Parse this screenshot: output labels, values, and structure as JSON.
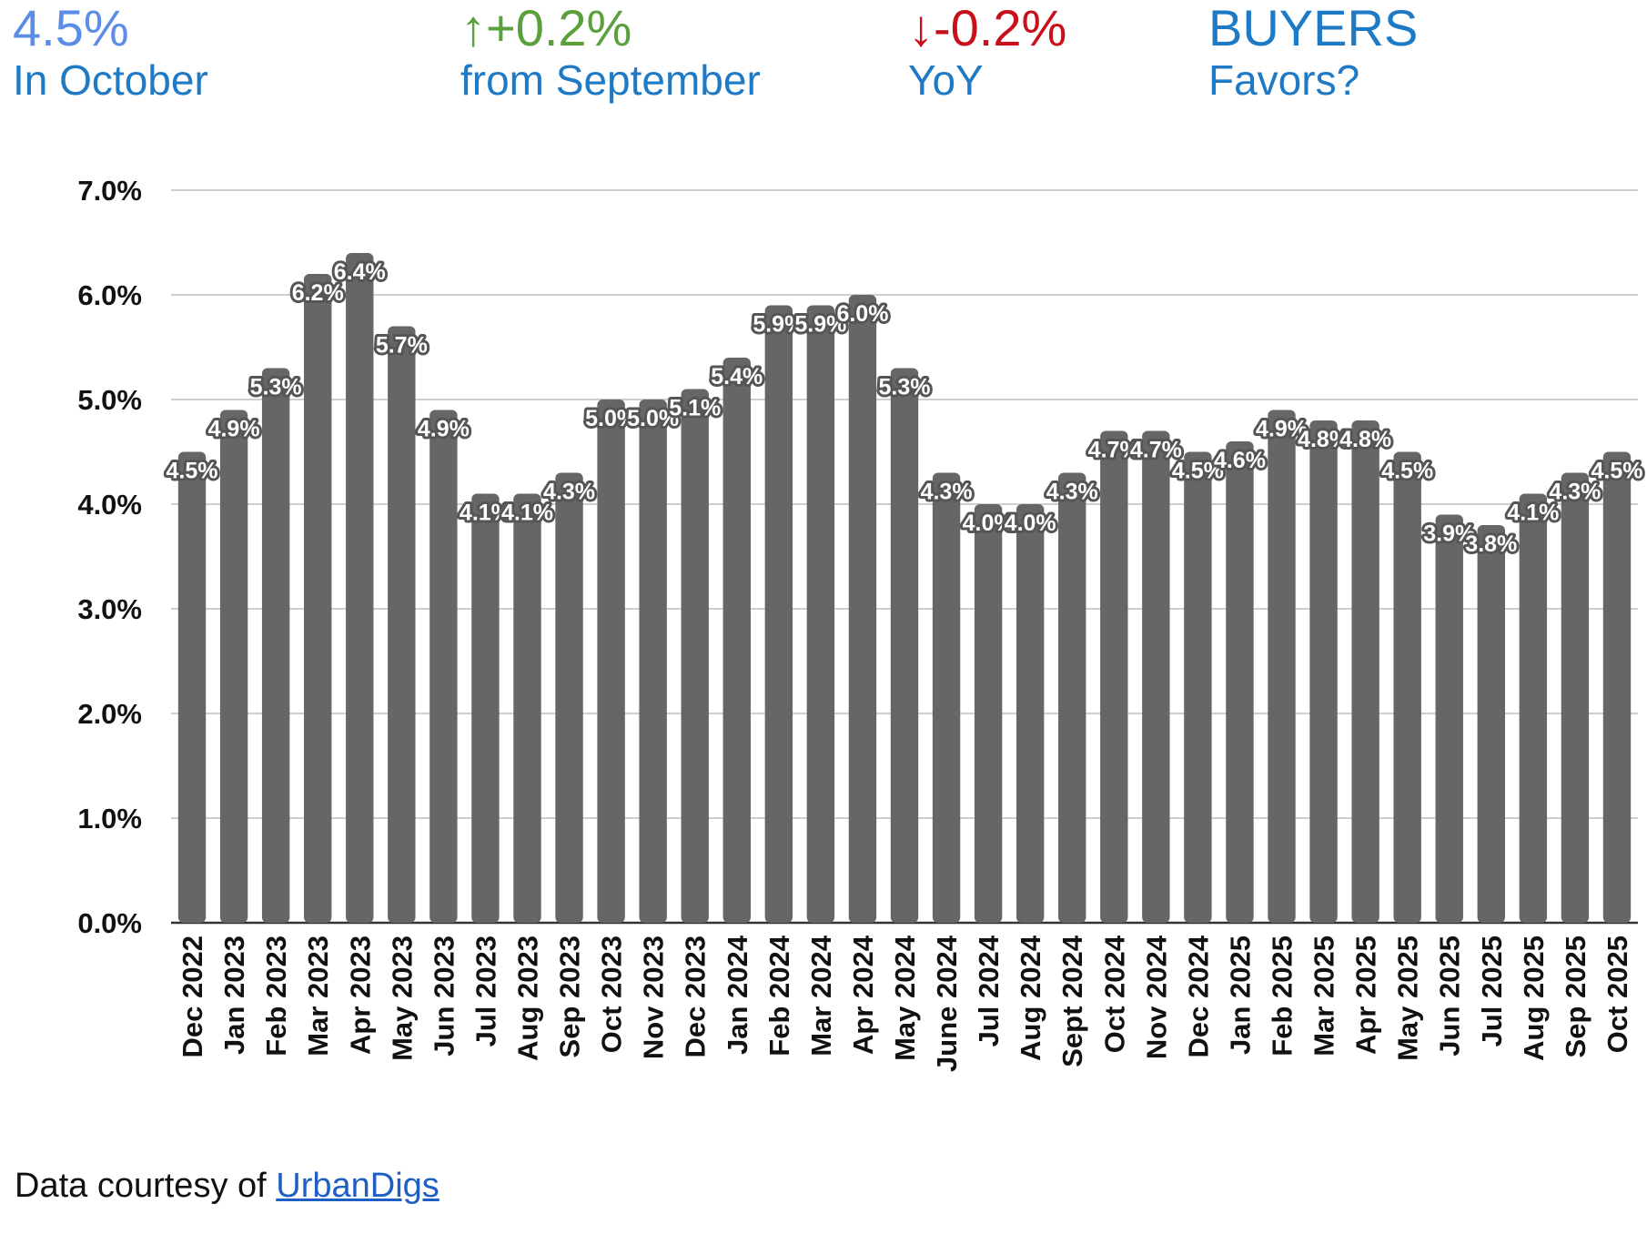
{
  "header": {
    "rate_value": "4.5%",
    "rate_caption": "In October",
    "mom_value": "↑+0.2%",
    "mom_caption": "from September",
    "yoy_value": "↓-0.2%",
    "yoy_caption": "YoY",
    "favors_value": "BUYERS",
    "favors_caption": "Favors?",
    "colors": {
      "rate": "#5b8de8",
      "mom": "#5aa03c",
      "yoy": "#c8101a",
      "favors": "#1f7ac6",
      "caption": "#1f7ac6"
    }
  },
  "chart_data": {
    "type": "bar",
    "categories": [
      "Dec 2022",
      "Jan 2023",
      "Feb 2023",
      "Mar 2023",
      "Apr 2023",
      "May 2023",
      "Jun 2023",
      "Jul 2023",
      "Aug 2023",
      "Sep 2023",
      "Oct 2023",
      "Nov 2023",
      "Dec 2023",
      "Jan 2024",
      "Feb 2024",
      "Mar 2024",
      "Apr 2024",
      "May 2024",
      "June 2024",
      "Jul 2024",
      "Aug 2024",
      "Sept 2024",
      "Oct 2024",
      "Nov 2024",
      "Dec 2024",
      "Jan 2025",
      "Feb 2025",
      "Mar 2025",
      "Apr 2025",
      "May 2025",
      "Jun 2025",
      "Jul 2025",
      "Aug 2025",
      "Sep 2025",
      "Oct 2025"
    ],
    "values": [
      4.5,
      4.9,
      5.3,
      6.2,
      6.4,
      5.7,
      4.9,
      4.1,
      4.1,
      4.3,
      5.0,
      5.0,
      5.1,
      5.4,
      5.9,
      5.9,
      6.0,
      5.3,
      4.3,
      4.0,
      4.0,
      4.3,
      4.7,
      4.7,
      4.5,
      4.6,
      4.9,
      4.8,
      4.8,
      4.5,
      3.9,
      3.8,
      4.1,
      4.3,
      4.5
    ],
    "data_labels": [
      "4.5%",
      "4.9%",
      "5.3%",
      "6.2%",
      "6.4%",
      "5.7%",
      "4.9%",
      "4.1%",
      "4.1%",
      "4.3%",
      "5.0%",
      "5.0%",
      "5.1%",
      "5.4%",
      "5.9%",
      "5.9%",
      "6.0%",
      "5.3%",
      "4.3%",
      "4.0%",
      "4.0%",
      "4.3%",
      "4.7%",
      "4.7%",
      "4.5%",
      "4.6%",
      "4.9%",
      "4.8%",
      "4.8%",
      "4.5%",
      "3.9%",
      "3.8%",
      "4.1%",
      "4.3%",
      "4.5%"
    ],
    "y_ticks": [
      "0.0%",
      "1.0%",
      "2.0%",
      "3.0%",
      "4.0%",
      "5.0%",
      "6.0%",
      "7.0%"
    ],
    "ylim": [
      0,
      7
    ],
    "title": "",
    "xlabel": "",
    "ylabel": "",
    "grid": true,
    "bar_color": "#666666"
  },
  "footer": {
    "prefix": "Data courtesy of ",
    "link_text": "UrbanDigs"
  }
}
